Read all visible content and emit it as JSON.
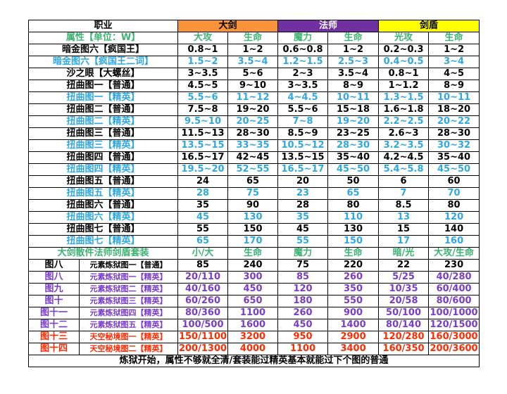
{
  "colors": {
    "orange": "#F7943B",
    "purple": "#7030A0",
    "yellow": "#FFFF00",
    "green": "#3CB371",
    "blue": "#2FA8E0",
    "black": "#000000",
    "violet": "#7A3CC8",
    "red": "#FF2A00"
  },
  "header": {
    "job": "职业",
    "classes": [
      {
        "name": "大剑",
        "bg": "#F7943B",
        "fg": "#000000"
      },
      {
        "name": "法师",
        "bg": "#7030A0",
        "fg": "#ffffff"
      },
      {
        "name": "剑盾",
        "bg": "#FFFF00",
        "fg": "#000000"
      }
    ]
  },
  "attr_row": {
    "label": "属性【单位：W】",
    "color": "#3CB371",
    "cols": [
      "大攻",
      "生命",
      "魔力",
      "生命",
      "光攻",
      "生命"
    ]
  },
  "rows": [
    {
      "label": "暗金图六【疯国王】",
      "color": "#000000",
      "vals": [
        "0.8~1",
        "1~2",
        "0.6~0.8",
        "1~2",
        "0.2~0.3",
        "1~2"
      ]
    },
    {
      "label": "暗金图六【疯国王二词】",
      "color": "#2FA8E0",
      "vals": [
        "1.5~2",
        "3.5~4",
        "1.2~1.5",
        "2.5~3",
        "0.4~0.5",
        "3~4"
      ]
    },
    {
      "label": "沙之眼【大螺丝】",
      "color": "#000000",
      "vals": [
        "3~3.5",
        "5~6",
        "2~3",
        "3.5~4",
        "0.8~1",
        "4~5"
      ]
    },
    {
      "label": "扭曲图一【普通】",
      "color": "#000000",
      "vals": [
        "4.5~5",
        "9~10",
        "3~3.5",
        "8~9",
        "1~1.2",
        "8~9"
      ]
    },
    {
      "label": "扭曲图一【精英】",
      "color": "#2FA8E0",
      "vals": [
        "5.5~6",
        "11~12",
        "4~4.5",
        "10~11",
        "1.3~1.5",
        "10~11"
      ]
    },
    {
      "label": "扭曲图二【普通】",
      "color": "#000000",
      "vals": [
        "7.5~8",
        "19~20",
        "5.5~6",
        "15~18",
        "1.6~1.8",
        "18~20"
      ]
    },
    {
      "label": "扭曲图二【精英】",
      "color": "#2FA8E0",
      "vals": [
        "9.5~10",
        "20~25",
        "7~8",
        "19~20",
        "2.2~2.5",
        "20~22"
      ]
    },
    {
      "label": "扭曲图三【普通】",
      "color": "#000000",
      "vals": [
        "11.5~13",
        "28~30",
        "8.5~9",
        "23~25",
        "2.6~3",
        "28~30"
      ]
    },
    {
      "label": "扭曲图三【精英】",
      "color": "#2FA8E0",
      "vals": [
        "13.5~15",
        "33~35",
        "10.5~12",
        "28~30",
        "3.2~3.5",
        "30~32"
      ]
    },
    {
      "label": "扭曲图四【普通】",
      "color": "#000000",
      "vals": [
        "16.5~17",
        "42~45",
        "13.5~15",
        "35~40",
        "4.2~4.5",
        "35~40"
      ]
    },
    {
      "label": "扭曲图四【精英】",
      "color": "#2FA8E0",
      "vals": [
        "19.5~20",
        "52~55",
        "16.5~17",
        "45~50",
        "5.4~5.8",
        "45~50"
      ]
    },
    {
      "label": "扭曲图五【普通】",
      "color": "#000000",
      "vals": [
        "24",
        "65",
        "20",
        "50",
        "6",
        "60"
      ]
    },
    {
      "label": "扭曲图五【精英】",
      "color": "#2FA8E0",
      "vals": [
        "28",
        "75",
        "23",
        "65",
        "7",
        "70"
      ]
    },
    {
      "label": "扭曲图六【普通】",
      "color": "#000000",
      "vals": [
        "35",
        "90",
        "28",
        "80",
        "8.5",
        "80"
      ]
    },
    {
      "label": "扭曲图六【精英】",
      "color": "#2FA8E0",
      "vals": [
        "45",
        "130",
        "35",
        "110",
        "13",
        "120"
      ]
    },
    {
      "label": "扭曲图七【普通】",
      "color": "#000000",
      "vals": [
        "55",
        "150",
        "45",
        "130",
        "15",
        "140"
      ]
    },
    {
      "label": "扭曲图七【精英】",
      "color": "#2FA8E0",
      "vals": [
        "65",
        "170",
        "55",
        "150",
        "17",
        "160"
      ]
    }
  ],
  "gear_row": {
    "label": "大剑散件法师剑盾套装",
    "color": "#3CB371",
    "cols": [
      "小/大",
      "生命",
      "魔力",
      "生命",
      "暗/光",
      "大攻/生命"
    ]
  },
  "map_rows": [
    {
      "map": "图八",
      "stage": "元素炼狱图一【普通】",
      "color": "#000000",
      "vals": [
        "85",
        "240",
        "75",
        "220",
        "22",
        "230"
      ]
    },
    {
      "map": "图八",
      "stage": "元素炼狱图一【精英】",
      "color": "#7A3CC8",
      "vals": [
        "20/110",
        "300",
        "85",
        "260",
        "5/25",
        "40/280"
      ]
    },
    {
      "map": "图九",
      "stage": "元素炼狱图二【精英】",
      "color": "#7A3CC8",
      "vals": [
        "40/160",
        "450",
        "120",
        "350",
        "10/35",
        "60/400"
      ]
    },
    {
      "map": "图十",
      "stage": "元素炼狱图三【精英】",
      "color": "#7A3CC8",
      "vals": [
        "60/260",
        "650",
        "180",
        "550",
        "20/58",
        "80/600"
      ]
    },
    {
      "map": "图十一",
      "stage": "元素炼狱图四【精英】",
      "color": "#7A3CC8",
      "vals": [
        "80/360",
        "1100",
        "260",
        "900",
        "50/100",
        "100/1000"
      ]
    },
    {
      "map": "图十二",
      "stage": "元素炼狱图五【精英】",
      "color": "#7A3CC8",
      "vals": [
        "100/500",
        "1600",
        "450",
        "1400",
        "80/140",
        "120/1500"
      ]
    },
    {
      "map": "图十三",
      "stage": "天空秘境图一【精英】",
      "color": "#FF2A00",
      "vals": [
        "150/1100",
        "3200",
        "950",
        "2900",
        "120/280",
        "160/3000"
      ]
    },
    {
      "map": "图十四",
      "stage": "天空秘境图二【精英】",
      "color": "#FF2A00",
      "vals": [
        "200/1300",
        "4000",
        "1100",
        "3400",
        "160/350",
        "200/3600"
      ]
    }
  ],
  "footer": "炼狱开始，属性不够就全清/套装能过精英基本就能过下个图的普通"
}
